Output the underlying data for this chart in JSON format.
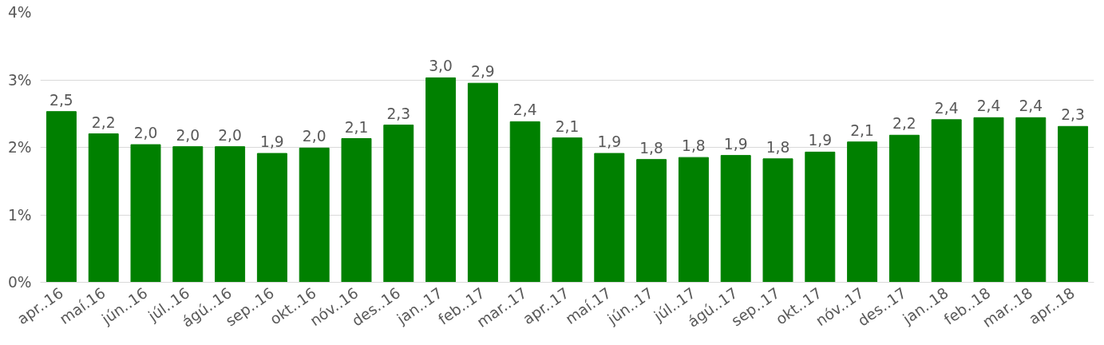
{
  "chart_data": {
    "type": "bar",
    "categories": [
      "apr..16",
      "maí.16",
      "jún..16",
      "júl..16",
      "ágú..16",
      "sep..16",
      "okt..16",
      "nóv..16",
      "des..16",
      "jan..17",
      "feb..17",
      "mar..17",
      "apr..17",
      "maí.17",
      "jún..17",
      "júl..17",
      "ágú..17",
      "sep..17",
      "okt..17",
      "nóv..17",
      "des..17",
      "jan..18",
      "feb..18",
      "mar..18",
      "apr..18"
    ],
    "values": [
      2.53,
      2.2,
      2.04,
      2.01,
      2.01,
      1.91,
      1.99,
      2.13,
      2.33,
      3.03,
      2.95,
      2.38,
      2.14,
      1.91,
      1.82,
      1.85,
      1.88,
      1.83,
      1.93,
      2.08,
      2.18,
      2.41,
      2.44,
      2.44,
      2.31
    ],
    "value_labels": [
      "2,5",
      "2,2",
      "2,0",
      "2,0",
      "2,0",
      "1,9",
      "2,0",
      "2,1",
      "2,3",
      "3,0",
      "2,9",
      "2,4",
      "2,1",
      "1,9",
      "1,8",
      "1,8",
      "1,9",
      "1,8",
      "1,9",
      "2,1",
      "2,2",
      "2,4",
      "2,4",
      "2,4",
      "2,3"
    ],
    "color": "#008000",
    "ylim": [
      0,
      4
    ],
    "yticks": [
      {
        "value": 0,
        "label": "0%"
      },
      {
        "value": 1,
        "label": "1%"
      },
      {
        "value": 2,
        "label": "2%"
      },
      {
        "value": 3,
        "label": "3%"
      },
      {
        "value": 4,
        "label": "4%"
      }
    ],
    "grid": "y"
  }
}
